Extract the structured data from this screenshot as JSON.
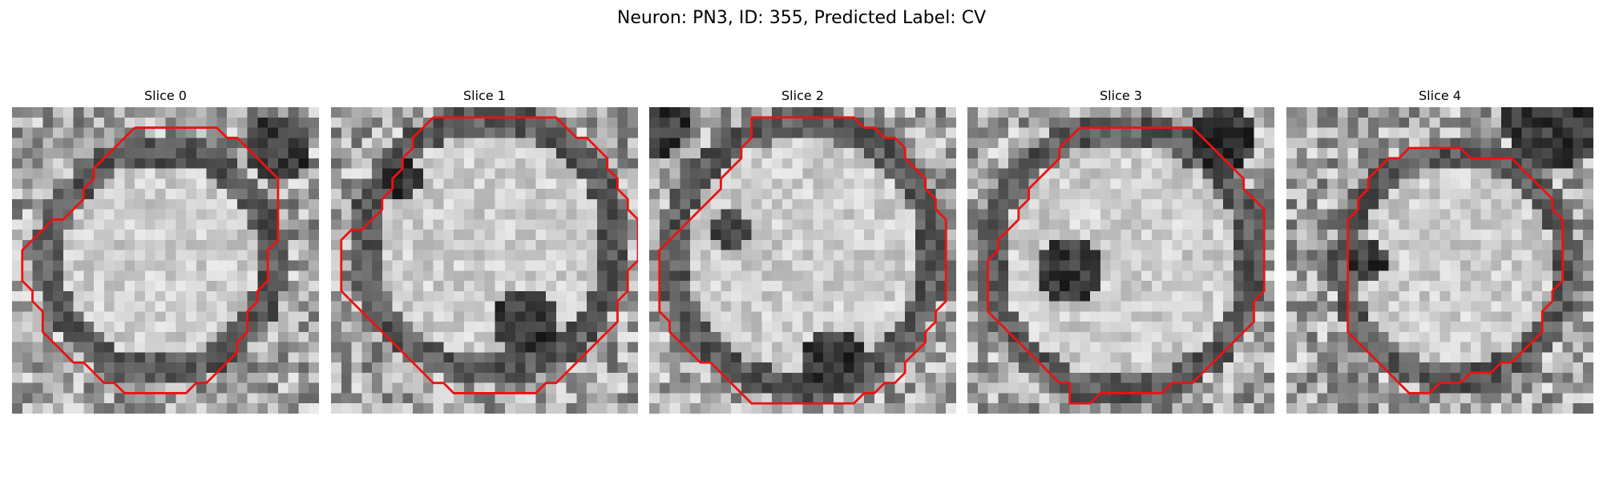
{
  "figure": {
    "title": "Neuron: PN3, ID: 355, Predicted Label: CV",
    "contour_color": "#ee1111"
  },
  "slices": [
    {
      "title": "Slice 0"
    },
    {
      "title": "Slice 1"
    },
    {
      "title": "Slice 2"
    },
    {
      "title": "Slice 3"
    },
    {
      "title": "Slice 4"
    }
  ]
}
